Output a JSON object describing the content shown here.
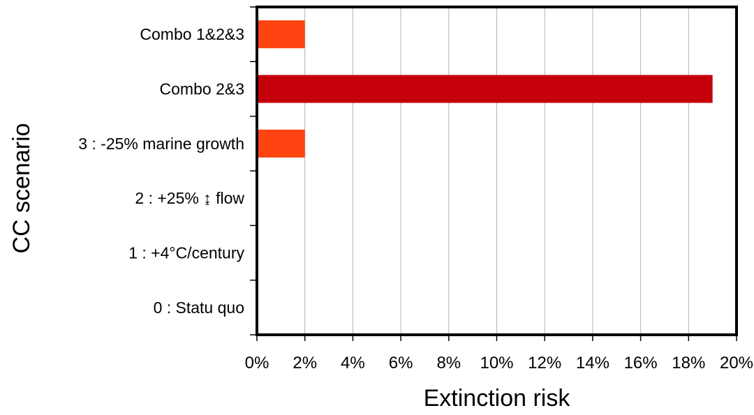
{
  "chart_data": {
    "type": "bar",
    "orientation": "horizontal",
    "title": "",
    "xlabel": "Extinction risk",
    "ylabel": "CC scenario",
    "categories": [
      "0 : Statu quo",
      "1 : +4°C/century",
      "2 : +25% ↨ flow",
      "3 : -25% marine growth",
      "Combo 2&3",
      "Combo 1&2&3"
    ],
    "values": [
      0,
      0,
      0,
      0.02,
      0.19,
      0.02
    ],
    "bar_colors": [
      "#ff4411",
      "#ff4411",
      "#ff4411",
      "#ff4411",
      "#c5000b",
      "#ff4411"
    ],
    "xlim": [
      0,
      0.2
    ],
    "x_ticks": [
      0,
      0.02,
      0.04,
      0.06,
      0.08,
      0.1,
      0.12,
      0.14,
      0.16,
      0.18,
      0.2
    ],
    "x_tick_labels": [
      "0%",
      "2%",
      "4%",
      "6%",
      "8%",
      "10%",
      "12%",
      "14%",
      "16%",
      "18%",
      "20%"
    ],
    "grid": true,
    "legend": "none"
  }
}
